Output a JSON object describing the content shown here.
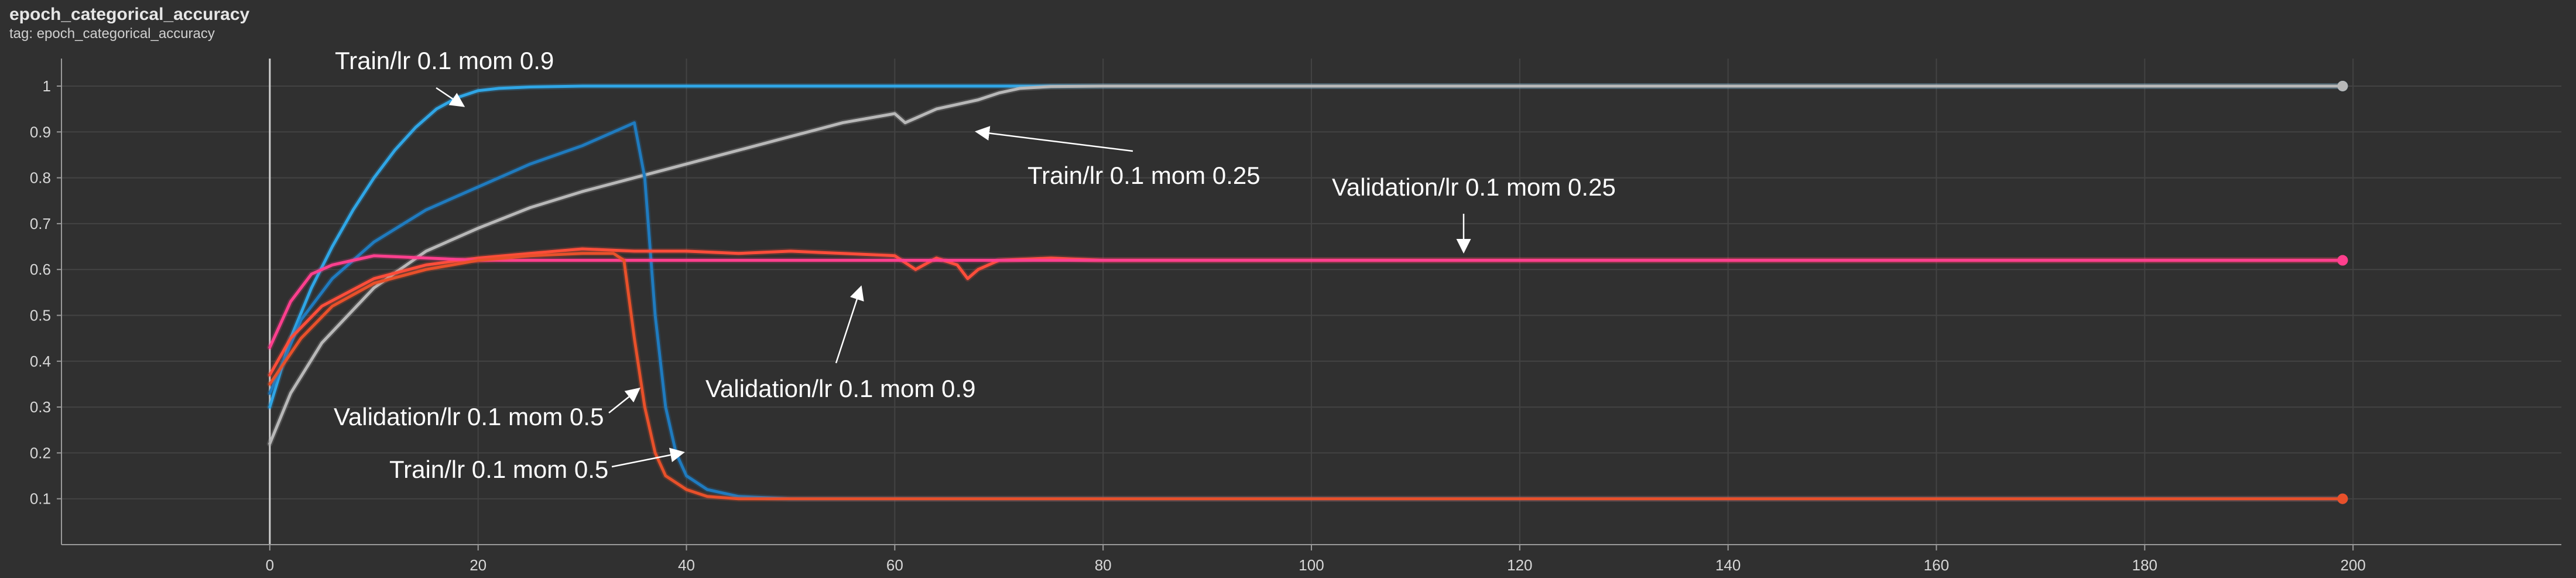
{
  "card": {
    "title": "epoch_categorical_accuracy",
    "tag": "tag: epoch_categorical_accuracy"
  },
  "chart_data": {
    "type": "line",
    "xlim": [
      -20,
      220
    ],
    "ylim": [
      0.0,
      1.06
    ],
    "xticks": [
      0,
      20,
      40,
      60,
      80,
      100,
      120,
      140,
      160,
      180,
      200
    ],
    "yticks": [
      0.1,
      0.2,
      0.3,
      0.4,
      0.5,
      0.6,
      0.7,
      0.8,
      0.9,
      1
    ],
    "grid": true,
    "background": "#303030",
    "series": [
      {
        "name": "Train/lr 0.1 mom 0.9",
        "color": "#2fa6e6",
        "x": [
          0,
          2,
          4,
          6,
          8,
          10,
          12,
          14,
          16,
          18,
          20,
          22,
          25,
          30,
          40,
          60,
          80,
          120,
          160,
          199
        ],
        "y": [
          0.3,
          0.45,
          0.56,
          0.65,
          0.73,
          0.8,
          0.86,
          0.91,
          0.95,
          0.975,
          0.99,
          0.995,
          0.998,
          1.0,
          1.0,
          1.0,
          1.0,
          1.0,
          1.0,
          1.0
        ]
      },
      {
        "name": "Train/lr 0.1 mom 0.25",
        "color": "#b8b8b8",
        "x": [
          0,
          2,
          5,
          10,
          15,
          20,
          25,
          30,
          35,
          40,
          45,
          50,
          55,
          60,
          61,
          62,
          64,
          66,
          68,
          70,
          72,
          75,
          80,
          100,
          150,
          199
        ],
        "y": [
          0.22,
          0.33,
          0.44,
          0.56,
          0.64,
          0.69,
          0.735,
          0.77,
          0.8,
          0.83,
          0.86,
          0.89,
          0.92,
          0.94,
          0.92,
          0.93,
          0.95,
          0.96,
          0.97,
          0.985,
          0.995,
          0.999,
          1.0,
          1.0,
          1.0,
          1.0
        ]
      },
      {
        "name": "Train/lr 0.1 mom 0.5",
        "color": "#1f7bbf",
        "x": [
          0,
          3,
          6,
          10,
          15,
          20,
          25,
          30,
          34,
          35,
          36,
          37,
          38,
          39,
          40,
          42,
          45,
          50,
          100,
          150,
          199
        ],
        "y": [
          0.33,
          0.49,
          0.58,
          0.66,
          0.73,
          0.78,
          0.83,
          0.87,
          0.91,
          0.92,
          0.8,
          0.5,
          0.3,
          0.2,
          0.15,
          0.12,
          0.105,
          0.1,
          0.1,
          0.1,
          0.1
        ]
      },
      {
        "name": "Validation/lr 0.1 mom 0.25",
        "color": "#ff4d3a",
        "x": [
          0,
          2,
          5,
          10,
          15,
          20,
          25,
          30,
          35,
          40,
          45,
          50,
          55,
          60,
          62,
          64,
          66,
          67,
          68,
          70,
          75,
          80,
          100,
          150,
          199
        ],
        "y": [
          0.37,
          0.45,
          0.52,
          0.58,
          0.61,
          0.625,
          0.635,
          0.645,
          0.64,
          0.64,
          0.635,
          0.64,
          0.635,
          0.63,
          0.6,
          0.625,
          0.61,
          0.58,
          0.6,
          0.62,
          0.625,
          0.62,
          0.62,
          0.62,
          0.62
        ]
      },
      {
        "name": "Validation/lr 0.1 mom 0.9",
        "color": "#ff3f8e",
        "x": [
          0,
          2,
          4,
          6,
          8,
          10,
          15,
          20,
          30,
          40,
          60,
          80,
          120,
          160,
          199
        ],
        "y": [
          0.43,
          0.53,
          0.59,
          0.61,
          0.62,
          0.63,
          0.625,
          0.62,
          0.62,
          0.62,
          0.62,
          0.62,
          0.62,
          0.62,
          0.62
        ]
      },
      {
        "name": "Validation/lr 0.1 mom 0.5",
        "color": "#e8502a",
        "x": [
          0,
          3,
          6,
          10,
          15,
          20,
          25,
          30,
          33,
          34,
          35,
          36,
          37,
          38,
          40,
          42,
          45,
          50,
          100,
          150,
          199
        ],
        "y": [
          0.35,
          0.45,
          0.52,
          0.57,
          0.6,
          0.62,
          0.63,
          0.635,
          0.635,
          0.62,
          0.45,
          0.3,
          0.2,
          0.15,
          0.12,
          0.105,
          0.1,
          0.1,
          0.1,
          0.1,
          0.1
        ]
      }
    ],
    "annotations": [
      {
        "text": "Train/lr 0.1 mom 0.9",
        "target": [
          18,
          0.97
        ]
      },
      {
        "text": "Train/lr 0.1 mom 0.25",
        "target": [
          68,
          0.96
        ]
      },
      {
        "text": "Validation/lr 0.1 mom 0.25",
        "target": [
          115,
          0.64
        ]
      },
      {
        "text": "Validation/lr 0.1 mom 0.9",
        "target": [
          57,
          0.58
        ]
      },
      {
        "text": "Validation/lr 0.1 mom 0.5",
        "target": [
          35,
          0.36
        ]
      },
      {
        "text": "Train/lr 0.1 mom 0.5",
        "target": [
          39,
          0.21
        ]
      }
    ]
  }
}
